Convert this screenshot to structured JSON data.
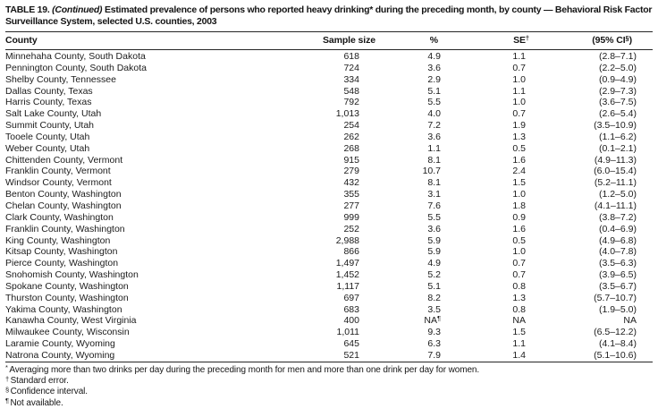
{
  "title": {
    "label": "TABLE 19.",
    "continued": "(Continued)",
    "text": "Estimated prevalence of persons who reported heavy drinking* during the preceding month, by county — Behavioral Risk Factor Surveillance System, selected U.S. counties, 2003"
  },
  "table": {
    "columns": [
      {
        "label": "County"
      },
      {
        "label": "Sample size"
      },
      {
        "label": "%"
      },
      {
        "label": "SE",
        "sup": "†"
      },
      {
        "label": "(95% CI",
        "sup": "§",
        "after": ")"
      }
    ],
    "rows": [
      [
        "Minnehaha County, South Dakota",
        "618",
        "4.9",
        "1.1",
        "(2.8–7.1)"
      ],
      [
        "Pennington County, South Dakota",
        "724",
        "3.6",
        "0.7",
        "(2.2–5.0)"
      ],
      [
        "Shelby County, Tennessee",
        "334",
        "2.9",
        "1.0",
        "(0.9–4.9)"
      ],
      [
        "Dallas County, Texas",
        "548",
        "5.1",
        "1.1",
        "(2.9–7.3)"
      ],
      [
        "Harris County, Texas",
        "792",
        "5.5",
        "1.0",
        "(3.6–7.5)"
      ],
      [
        "Salt Lake County, Utah",
        "1,013",
        "4.0",
        "0.7",
        "(2.6–5.4)"
      ],
      [
        "Summit County, Utah",
        "254",
        "7.2",
        "1.9",
        "(3.5–10.9)"
      ],
      [
        "Tooele County, Utah",
        "262",
        "3.6",
        "1.3",
        "(1.1–6.2)"
      ],
      [
        "Weber County, Utah",
        "268",
        "1.1",
        "0.5",
        "(0.1–2.1)"
      ],
      [
        "Chittenden County, Vermont",
        "915",
        "8.1",
        "1.6",
        "(4.9–11.3)"
      ],
      [
        "Franklin County, Vermont",
        "279",
        "10.7",
        "2.4",
        "(6.0–15.4)"
      ],
      [
        "Windsor County, Vermont",
        "432",
        "8.1",
        "1.5",
        "(5.2–11.1)"
      ],
      [
        "Benton County, Washington",
        "355",
        "3.1",
        "1.0",
        "(1.2–5.0)"
      ],
      [
        "Chelan County, Washington",
        "277",
        "7.6",
        "1.8",
        "(4.1–11.1)"
      ],
      [
        "Clark County, Washington",
        "999",
        "5.5",
        "0.9",
        "(3.8–7.2)"
      ],
      [
        "Franklin County, Washington",
        "252",
        "3.6",
        "1.6",
        "(0.4–6.9)"
      ],
      [
        "King County, Washington",
        "2,988",
        "5.9",
        "0.5",
        "(4.9–6.8)"
      ],
      [
        "Kitsap County, Washington",
        "866",
        "5.9",
        "1.0",
        "(4.0–7.8)"
      ],
      [
        "Pierce County, Washington",
        "1,497",
        "4.9",
        "0.7",
        "(3.5–6.3)"
      ],
      [
        "Snohomish County, Washington",
        "1,452",
        "5.2",
        "0.7",
        "(3.9–6.5)"
      ],
      [
        "Spokane County, Washington",
        "1,117",
        "5.1",
        "0.8",
        "(3.5–6.7)"
      ],
      [
        "Thurston County, Washington",
        "697",
        "8.2",
        "1.3",
        "(5.7–10.7)"
      ],
      [
        "Yakima County, Washington",
        "683",
        "3.5",
        "0.8",
        "(1.9–5.0)"
      ],
      [
        "Kanawha County, West Virginia",
        "400",
        {
          "v": "NA",
          "sup": "¶"
        },
        "NA",
        "NA"
      ],
      [
        "Milwaukee County, Wisconsin",
        "1,011",
        "9.3",
        "1.5",
        "(6.5–12.2)"
      ],
      [
        "Laramie County, Wyoming",
        "645",
        "6.3",
        "1.1",
        "(4.1–8.4)"
      ],
      [
        "Natrona County, Wyoming",
        "521",
        "7.9",
        "1.4",
        "(5.1–10.6)"
      ]
    ]
  },
  "footnotes": [
    {
      "sym": "*",
      "text": "Averaging more than two drinks per day during the preceding month for men and more than one drink per day for women."
    },
    {
      "sym": "†",
      "text": "Standard error."
    },
    {
      "sym": "§",
      "text": "Confidence interval."
    },
    {
      "sym": "¶",
      "text": "Not available."
    }
  ]
}
